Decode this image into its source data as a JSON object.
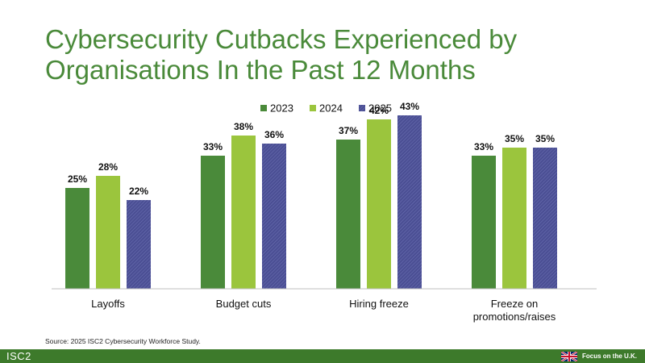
{
  "colors": {
    "title": "#4a8a3a",
    "footer": "#3d7a2b",
    "series": [
      "#4a8a3a",
      "#9bc53d",
      "#4b4f94"
    ]
  },
  "icons": {
    "flag": "uk-flag-icon"
  },
  "chart_data": {
    "type": "bar",
    "title": "Cybersecurity Cutbacks Experienced by Organisations In the Past 12 Months",
    "categories": [
      [
        "Layoffs"
      ],
      [
        "Budget cuts"
      ],
      [
        "Hiring freeze"
      ],
      [
        "Freeze on",
        "promotions/raises"
      ]
    ],
    "series": [
      {
        "name": "2023",
        "values": [
          25,
          33,
          37,
          33
        ],
        "labels": [
          "25%",
          "33%",
          "37%",
          "33%"
        ]
      },
      {
        "name": "2024",
        "values": [
          28,
          38,
          42,
          35
        ],
        "labels": [
          "28%",
          "38%",
          "42%",
          "35%"
        ]
      },
      {
        "name": "2025",
        "values": [
          22,
          36,
          43,
          35
        ],
        "labels": [
          "22%",
          "36%",
          "43%",
          "35%"
        ]
      }
    ],
    "ylim": [
      0,
      50
    ],
    "grid": false,
    "legend": "top-center"
  },
  "footer": {
    "source": "Source: 2025 ISC2 Cybersecurity Workforce Study.",
    "logo": "ISC2",
    "focus": "Focus on the U.K."
  }
}
